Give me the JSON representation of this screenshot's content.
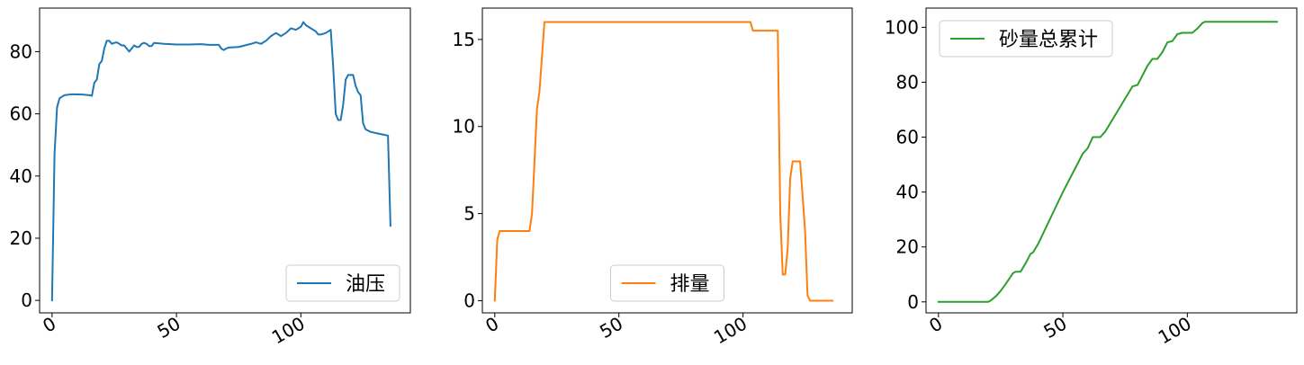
{
  "chart_data": [
    {
      "type": "line",
      "x_ticks": [
        0,
        50,
        100
      ],
      "y_ticks": [
        0,
        20,
        40,
        60,
        80
      ],
      "xlim": [
        -5,
        144
      ],
      "ylim": [
        -4,
        94
      ],
      "grid": false,
      "legend_position": "lower-right",
      "series": [
        {
          "name": "油压",
          "color": "#1f77b4",
          "points": [
            [
              0,
              0
            ],
            [
              1,
              47
            ],
            [
              2,
              62
            ],
            [
              3,
              65
            ],
            [
              5,
              66
            ],
            [
              8,
              66.3
            ],
            [
              12,
              66.2
            ],
            [
              15,
              66
            ],
            [
              16,
              65.8
            ],
            [
              17,
              70
            ],
            [
              18,
              71
            ],
            [
              19,
              76
            ],
            [
              20,
              77
            ],
            [
              21,
              81
            ],
            [
              22,
              83.5
            ],
            [
              23,
              83.5
            ],
            [
              24,
              82.5
            ],
            [
              25,
              82.8
            ],
            [
              26,
              83
            ],
            [
              27,
              82.5
            ],
            [
              28,
              82
            ],
            [
              29,
              82
            ],
            [
              30,
              81
            ],
            [
              31,
              80
            ],
            [
              32,
              81
            ],
            [
              33,
              82
            ],
            [
              34,
              81.5
            ],
            [
              35,
              81.5
            ],
            [
              36,
              82.5
            ],
            [
              37,
              82.8
            ],
            [
              38,
              82.5
            ],
            [
              39,
              81.8
            ],
            [
              40,
              81.8
            ],
            [
              41,
              82.8
            ],
            [
              45,
              82.5
            ],
            [
              50,
              82.3
            ],
            [
              55,
              82.3
            ],
            [
              60,
              82.4
            ],
            [
              63,
              82.2
            ],
            [
              67,
              82.2
            ],
            [
              68,
              81
            ],
            [
              69,
              80.5
            ],
            [
              70,
              81
            ],
            [
              71,
              81.3
            ],
            [
              75,
              81.5
            ],
            [
              80,
              82.5
            ],
            [
              82,
              83
            ],
            [
              84,
              82.5
            ],
            [
              86,
              83.5
            ],
            [
              88,
              85
            ],
            [
              90,
              86
            ],
            [
              91,
              85.5
            ],
            [
              92,
              85
            ],
            [
              94,
              86
            ],
            [
              96,
              87.5
            ],
            [
              98,
              87
            ],
            [
              100,
              88
            ],
            [
              101,
              89.5
            ],
            [
              102,
              88.5
            ],
            [
              104,
              87.5
            ],
            [
              106,
              86.5
            ],
            [
              107,
              85.5
            ],
            [
              108,
              85.5
            ],
            [
              110,
              86
            ],
            [
              112,
              87
            ],
            [
              113,
              75
            ],
            [
              114,
              60
            ],
            [
              115,
              58
            ],
            [
              116,
              58
            ],
            [
              117,
              63
            ],
            [
              118,
              71
            ],
            [
              119,
              72.5
            ],
            [
              121,
              72.5
            ],
            [
              122,
              69
            ],
            [
              123,
              67
            ],
            [
              124,
              66
            ],
            [
              125,
              57
            ],
            [
              126,
              55
            ],
            [
              128,
              54.2
            ],
            [
              132,
              53.5
            ],
            [
              135,
              53
            ],
            [
              136,
              24
            ]
          ]
        }
      ]
    },
    {
      "type": "line",
      "x_ticks": [
        0,
        50,
        100
      ],
      "y_ticks": [
        0,
        5,
        10,
        15
      ],
      "xlim": [
        -5,
        144
      ],
      "ylim": [
        -0.7,
        16.8
      ],
      "grid": false,
      "legend_position": "lower-center",
      "series": [
        {
          "name": "排量",
          "color": "#ff7f0e",
          "points": [
            [
              0,
              0
            ],
            [
              1,
              3.5
            ],
            [
              2,
              4
            ],
            [
              3,
              4
            ],
            [
              10,
              4
            ],
            [
              14,
              4
            ],
            [
              15,
              5
            ],
            [
              16,
              8
            ],
            [
              17,
              11
            ],
            [
              18,
              12
            ],
            [
              20,
              16
            ],
            [
              22,
              16
            ],
            [
              60,
              16
            ],
            [
              100,
              16
            ],
            [
              103,
              16
            ],
            [
              104,
              15.5
            ],
            [
              110,
              15.5
            ],
            [
              114,
              15.5
            ],
            [
              115,
              5
            ],
            [
              116,
              1.5
            ],
            [
              117,
              1.5
            ],
            [
              118,
              3
            ],
            [
              119,
              7
            ],
            [
              120,
              8
            ],
            [
              123,
              8
            ],
            [
              124,
              6
            ],
            [
              125,
              4
            ],
            [
              126,
              0.3
            ],
            [
              127,
              0
            ],
            [
              130,
              0
            ],
            [
              133,
              0
            ],
            [
              136,
              0
            ]
          ]
        }
      ]
    },
    {
      "type": "line",
      "x_ticks": [
        0,
        50,
        100
      ],
      "y_ticks": [
        0,
        20,
        40,
        60,
        80,
        100
      ],
      "xlim": [
        -5,
        144
      ],
      "ylim": [
        -4,
        107
      ],
      "grid": false,
      "legend_position": "top-left",
      "series": [
        {
          "name": "砂量总累计",
          "color": "#2ca02c",
          "points": [
            [
              0,
              0
            ],
            [
              10,
              0
            ],
            [
              20,
              0
            ],
            [
              21,
              0.5
            ],
            [
              23,
              2
            ],
            [
              25,
              4
            ],
            [
              27,
              6.5
            ],
            [
              30,
              10.5
            ],
            [
              31,
              11
            ],
            [
              33,
              11
            ],
            [
              35,
              14
            ],
            [
              37,
              17.5
            ],
            [
              38,
              18
            ],
            [
              40,
              21
            ],
            [
              50,
              40
            ],
            [
              58,
              54
            ],
            [
              60,
              56
            ],
            [
              62,
              60
            ],
            [
              65,
              60
            ],
            [
              67,
              62
            ],
            [
              78,
              78.5
            ],
            [
              80,
              79
            ],
            [
              84,
              86
            ],
            [
              86,
              88.5
            ],
            [
              88,
              88.5
            ],
            [
              90,
              91
            ],
            [
              92,
              94.5
            ],
            [
              94,
              95
            ],
            [
              96,
              97.5
            ],
            [
              98,
              98
            ],
            [
              102,
              98
            ],
            [
              104,
              99.5
            ],
            [
              106,
              101.5
            ],
            [
              107,
              102
            ],
            [
              110,
              102
            ],
            [
              130,
              102
            ],
            [
              135,
              102
            ],
            [
              136,
              102
            ]
          ]
        }
      ]
    }
  ]
}
